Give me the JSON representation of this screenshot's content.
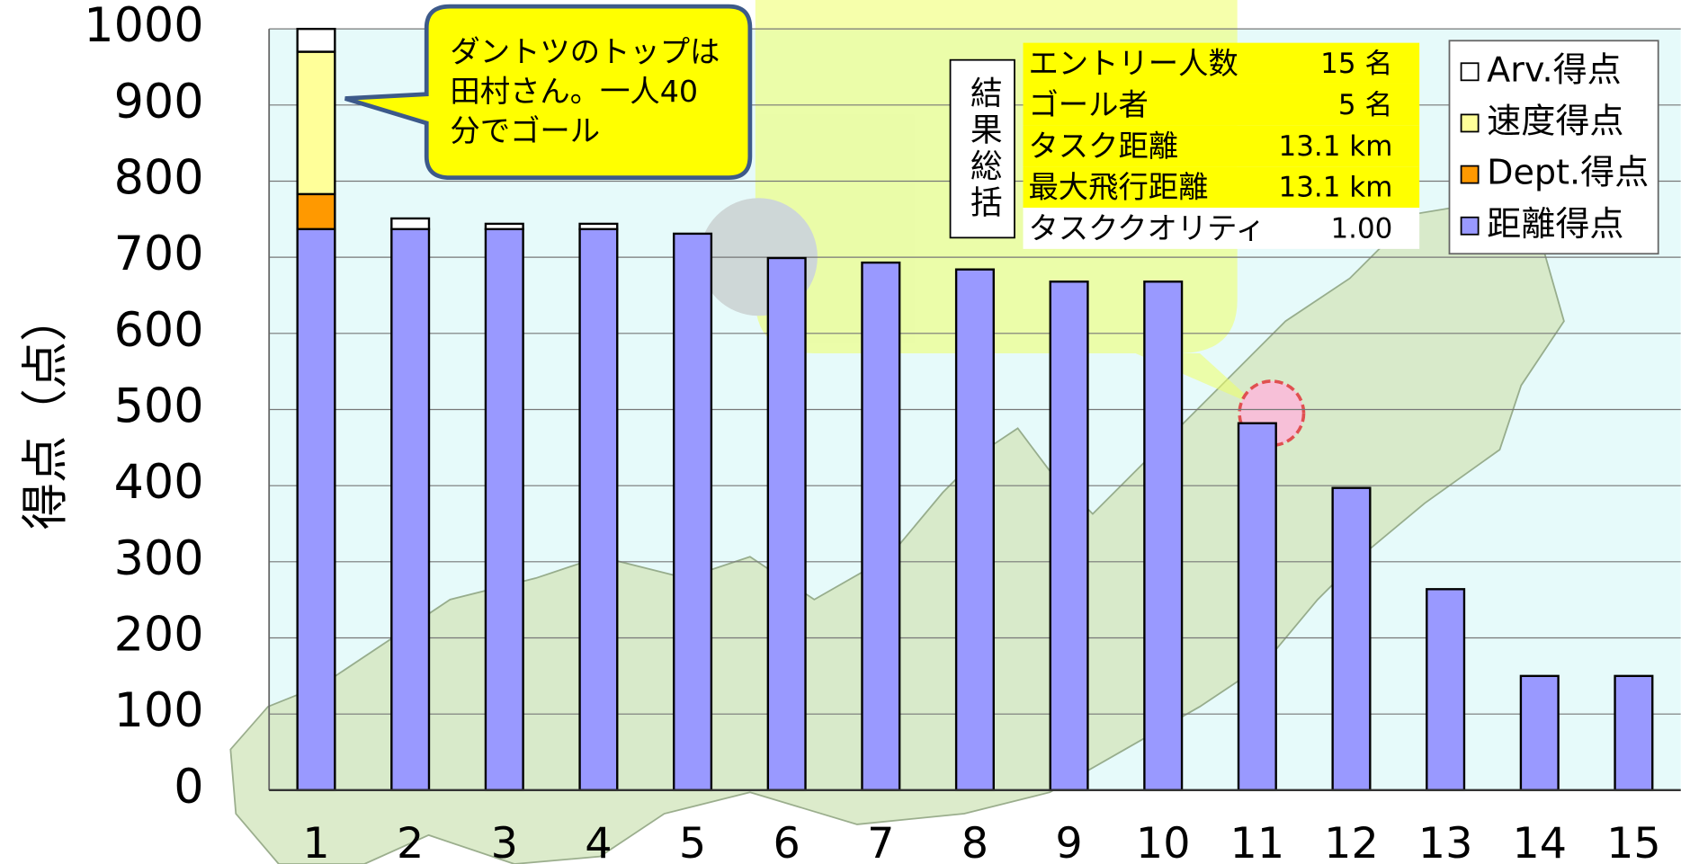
{
  "chart_data": {
    "type": "stacked_bar",
    "y_label": "得点（点）",
    "categories": [
      "1",
      "2",
      "3",
      "4",
      "5",
      "6",
      "7",
      "8",
      "9",
      "10",
      "11",
      "12",
      "13",
      "14",
      "15"
    ],
    "series": [
      {
        "name": "距離得点",
        "color": "#9999ff",
        "values": [
          737,
          737,
          737,
          737,
          731,
          699,
          693,
          684,
          668,
          668,
          482,
          397,
          264,
          150,
          150
        ]
      },
      {
        "name": "Dept.得点",
        "color": "#ff9900",
        "values": [
          46,
          0,
          0,
          0,
          0,
          0,
          0,
          0,
          0,
          0,
          0,
          0,
          0,
          0,
          0
        ]
      },
      {
        "name": "速度得点",
        "color": "#ffff99",
        "values": [
          187,
          0,
          0,
          0,
          0,
          0,
          0,
          0,
          0,
          0,
          0,
          0,
          0,
          0,
          0
        ]
      },
      {
        "name": "Arv.得点",
        "color": "#ffffff",
        "values": [
          30,
          14,
          7,
          7,
          0,
          0,
          0,
          0,
          0,
          0,
          0,
          0,
          0,
          0,
          0
        ]
      }
    ],
    "ylim": [
      0,
      1000
    ],
    "yticks": [
      0,
      100,
      200,
      300,
      400,
      500,
      600,
      700,
      800,
      900,
      1000
    ],
    "grid": true,
    "legend_position": "top-right",
    "callout": [
      "ダントツのトップは",
      "田村さん。一人40",
      "分でゴール"
    ],
    "summary": {
      "title": "結果総括",
      "rows": [
        [
          "エントリー人数",
          "15 名"
        ],
        [
          "ゴール者",
          "5 名"
        ],
        [
          "タスク距離",
          "13.1 km"
        ],
        [
          "最大飛行距離",
          "13.1 km"
        ],
        [
          "タスククオリティ",
          "1.00"
        ]
      ]
    }
  }
}
